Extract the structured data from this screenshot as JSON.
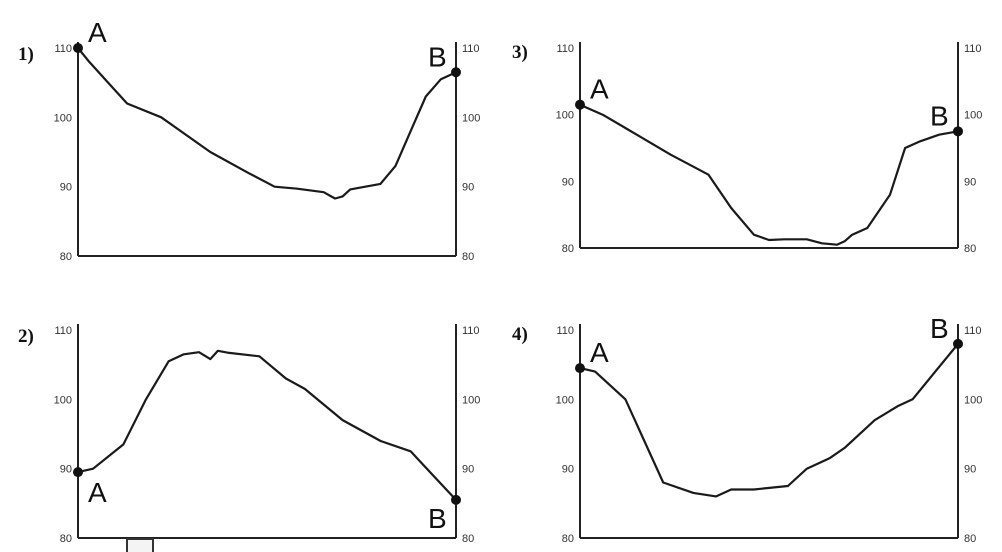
{
  "chart_data": [
    {
      "type": "line",
      "number_label": "1)",
      "ylim": [
        80,
        110
      ],
      "yticks": [
        "80",
        "90",
        "100",
        "110"
      ],
      "start_label": "A",
      "end_label": "B",
      "x": [
        0,
        3,
        8,
        13,
        22,
        35,
        45,
        52,
        58,
        65,
        68,
        70,
        72,
        74,
        80,
        84,
        88,
        92,
        96,
        100
      ],
      "values": [
        110,
        108,
        105,
        102,
        100,
        95,
        92,
        90,
        89.7,
        89.2,
        88.3,
        88.6,
        89.6,
        89.8,
        90.4,
        93,
        98,
        103,
        105.5,
        106.5
      ]
    },
    {
      "type": "line",
      "number_label": "2)",
      "ylim": [
        80,
        110
      ],
      "yticks": [
        "80",
        "90",
        "100",
        "110"
      ],
      "start_label": "A",
      "end_label": "B",
      "x": [
        0,
        4,
        12,
        18,
        24,
        28,
        32,
        35,
        37,
        40,
        48,
        55,
        60,
        70,
        80,
        88,
        94,
        100
      ],
      "values": [
        89.5,
        90,
        93.5,
        100,
        105.5,
        106.5,
        106.8,
        105.8,
        107,
        106.7,
        106.2,
        103,
        101.5,
        97,
        94,
        92.5,
        89,
        85.5
      ]
    },
    {
      "type": "line",
      "number_label": "3)",
      "ylim": [
        80,
        110
      ],
      "yticks": [
        "80",
        "90",
        "100",
        "110"
      ],
      "start_label": "A",
      "end_label": "B",
      "x": [
        0,
        6,
        12,
        18,
        24,
        34,
        40,
        46,
        50,
        54,
        60,
        64,
        68,
        70,
        72,
        76,
        82,
        86,
        90,
        95,
        100
      ],
      "values": [
        101.5,
        100,
        98,
        96,
        94,
        91,
        86,
        82,
        81.2,
        81.3,
        81.3,
        80.7,
        80.5,
        81,
        82,
        83,
        88,
        95,
        96,
        97,
        97.5
      ]
    },
    {
      "type": "line",
      "number_label": "4)",
      "ylim": [
        80,
        110
      ],
      "yticks": [
        "80",
        "90",
        "100",
        "110"
      ],
      "start_label": "A",
      "end_label": "B",
      "x": [
        0,
        4,
        12,
        22,
        30,
        36,
        40,
        46,
        55,
        60,
        66,
        70,
        78,
        84,
        88,
        94,
        100
      ],
      "values": [
        104.5,
        104,
        100,
        88,
        86.5,
        86,
        87,
        87,
        87.5,
        90,
        91.5,
        93,
        97,
        99,
        100,
        104,
        108
      ]
    }
  ]
}
